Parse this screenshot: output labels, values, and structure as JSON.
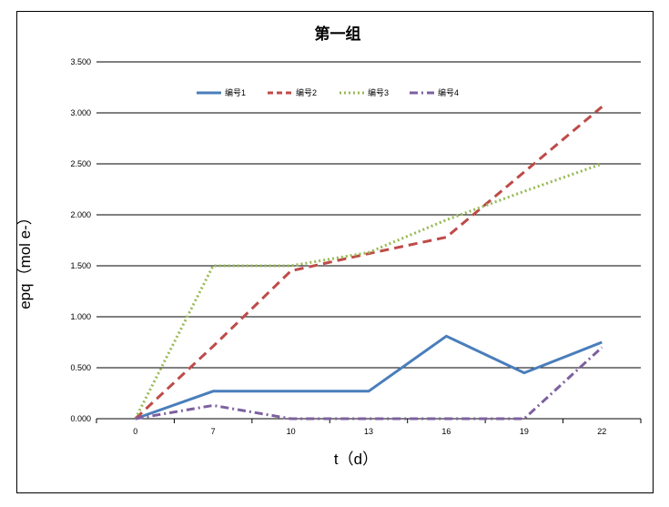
{
  "chart_data": {
    "type": "line",
    "title": "第一组",
    "xlabel": "t（d）",
    "ylabel": "epq（mol e-）",
    "categories": [
      "0",
      "7",
      "10",
      "13",
      "16",
      "19",
      "22"
    ],
    "y_ticks": [
      "0.000",
      "0.500",
      "1.000",
      "1.500",
      "2.000",
      "2.500",
      "3.000",
      "3.500"
    ],
    "ylim": [
      0,
      3.5
    ],
    "grid": true,
    "legend_position": "top",
    "series": [
      {
        "name": "编号1",
        "color": "#4a7ebb",
        "style": "solid",
        "values": [
          0.0,
          0.27,
          0.27,
          0.27,
          0.81,
          0.45,
          0.75
        ]
      },
      {
        "name": "编号2",
        "color": "#be4b48",
        "style": "dashed",
        "values": [
          0.0,
          0.71,
          1.45,
          1.62,
          1.78,
          2.42,
          3.06
        ]
      },
      {
        "name": "编号3",
        "color": "#98b954",
        "style": "dotted",
        "values": [
          0.0,
          1.5,
          1.5,
          1.63,
          1.95,
          2.23,
          2.5
        ]
      },
      {
        "name": "编号4",
        "color": "#7d60a0",
        "style": "dashdot",
        "values": [
          0.0,
          0.13,
          0.0,
          0.0,
          0.0,
          0.0,
          0.7
        ]
      }
    ]
  }
}
